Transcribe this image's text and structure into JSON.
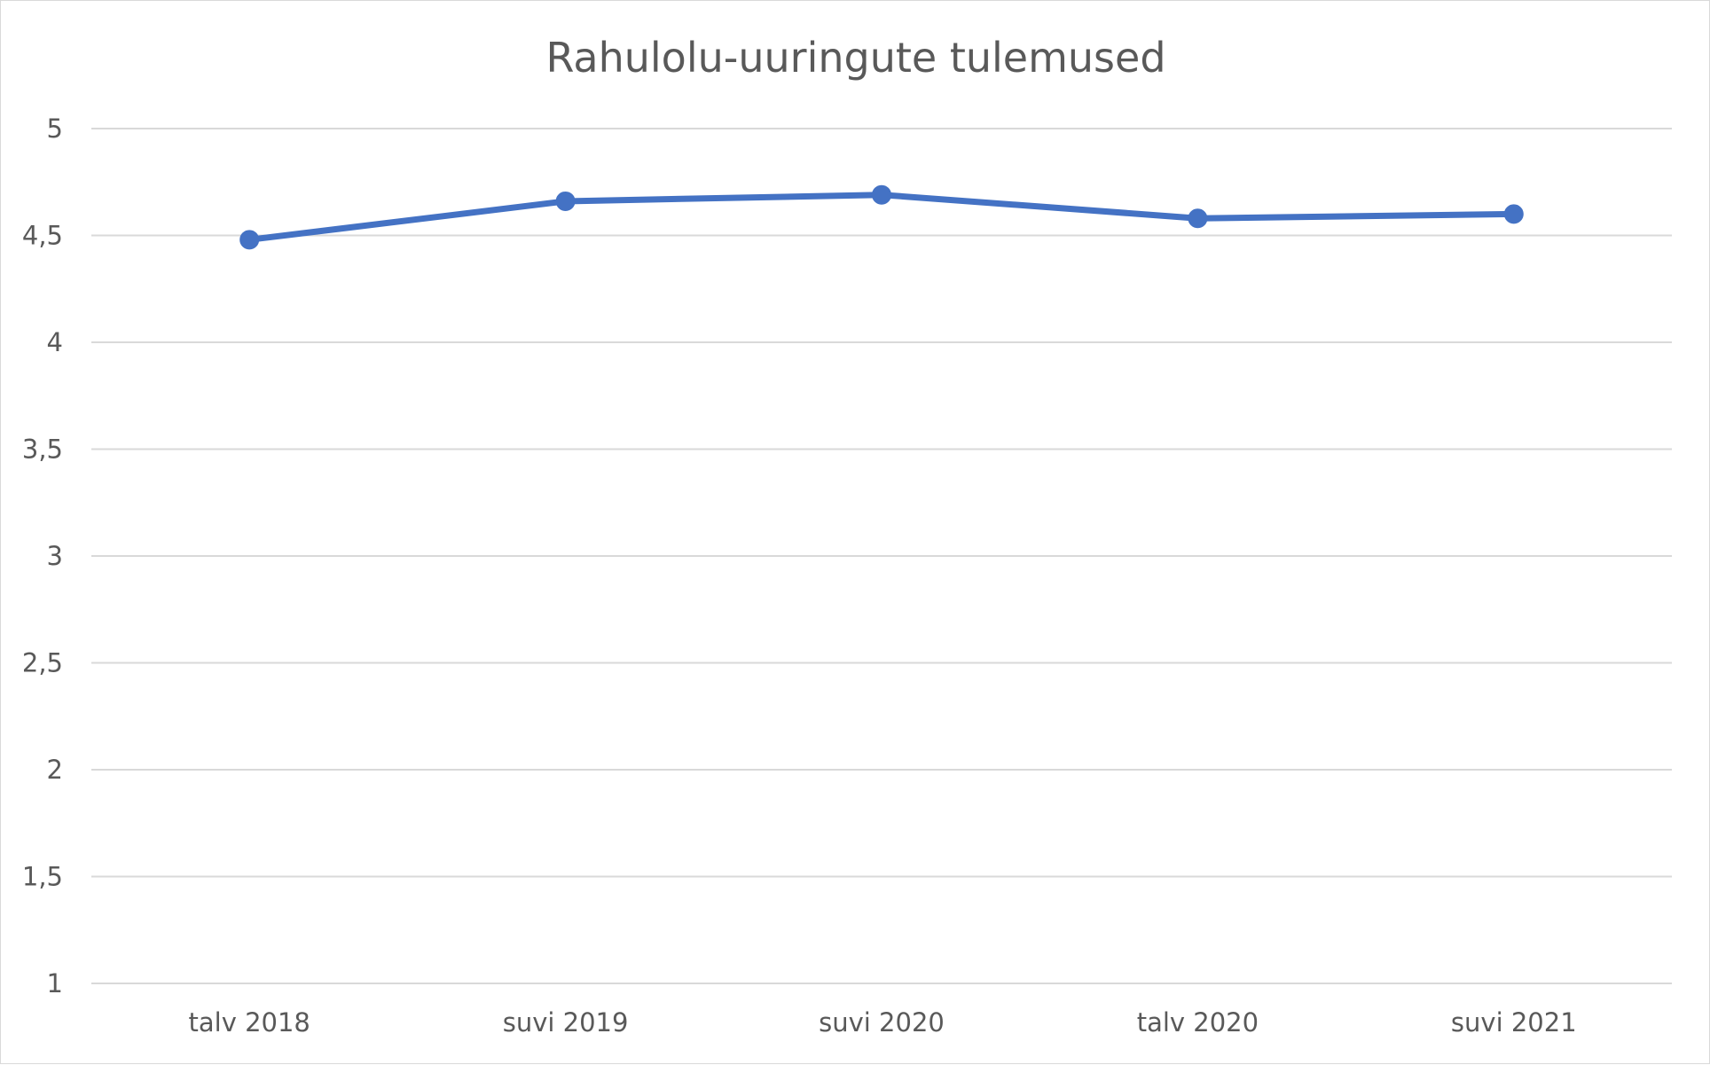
{
  "chart_data": {
    "type": "line",
    "title": "Rahulolu-uuringute tulemused",
    "categories": [
      "talv 2018",
      "suvi 2019",
      "suvi 2020",
      "talv 2020",
      "suvi 2021"
    ],
    "series": [
      {
        "values": [
          4.48,
          4.66,
          4.69,
          4.58,
          4.6
        ],
        "color": "#4472c4"
      }
    ],
    "y_ticks": [
      "5",
      "4,5",
      "4",
      "3,5",
      "3",
      "2,5",
      "2",
      "1,5",
      "1"
    ],
    "ylim": [
      1,
      5
    ],
    "grid": true,
    "legend": "none",
    "grid_color": "#d9d9d9",
    "text_color": "#595959"
  }
}
